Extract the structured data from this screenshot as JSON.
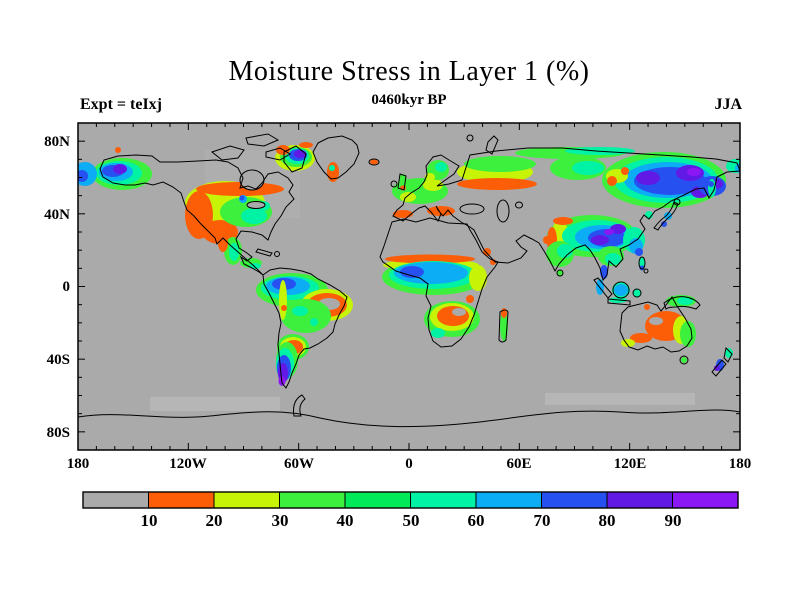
{
  "figure": {
    "title": "Moisture Stress in Layer 1 (%)",
    "subtitle": "0460kyr BP",
    "experiment_label": "Expt = teIxj",
    "season_label": "JJA"
  },
  "axes": {
    "lat_ticks": [
      "80N",
      "40N",
      "0",
      "40S",
      "80S"
    ],
    "lon_ticks": [
      "180",
      "120W",
      "60W",
      "0",
      "60E",
      "120E",
      "180"
    ]
  },
  "colorbar": {
    "labels": [
      "10",
      "20",
      "30",
      "40",
      "50",
      "60",
      "70",
      "80",
      "90"
    ],
    "colors": [
      "#aaaaaa",
      "#fc5e08",
      "#c6f306",
      "#3ef03e",
      "#00e958",
      "#00f2a4",
      "#0cadf5",
      "#2750f0",
      "#611ae6",
      "#8c17f5"
    ]
  },
  "chart_data": {
    "type": "heatmap",
    "title": "Moisture Stress in Layer 1 (%)",
    "subtitle": "0460kyr BP",
    "experiment": "teIxj",
    "season": "JJA",
    "units": "%",
    "projection": "equirectangular world map, filled contours over land",
    "lon_range": [
      -180,
      180
    ],
    "lat_range": [
      -90,
      90
    ],
    "lon_tick_labels": [
      "180",
      "120W",
      "60W",
      "0",
      "60E",
      "120E",
      "180"
    ],
    "lat_tick_labels": [
      "80N",
      "40N",
      "0",
      "40S",
      "80S"
    ],
    "contour_levels": [
      10,
      20,
      30,
      40,
      50,
      60,
      70,
      80,
      90
    ],
    "level_colors": [
      "#aaaaaa",
      "#fc5e08",
      "#c6f306",
      "#3ef03e",
      "#00e958",
      "#00f2a4",
      "#0cadf5",
      "#2750f0",
      "#611ae6",
      "#8c17f5"
    ],
    "legend_position": "bottom horizontal bar",
    "background_color": "#aaaaaa",
    "regions": [
      {
        "region": "Alaska interior",
        "approx_value_pct": "60-90"
      },
      {
        "region": "Canadian Arctic / Hudson Bay area",
        "approx_value_pct": "<10"
      },
      {
        "region": "Western US Great Basin",
        "approx_value_pct": "10-20"
      },
      {
        "region": "Central and Eastern US",
        "approx_value_pct": "30-60"
      },
      {
        "region": "Baffin Island / W Greenland",
        "approx_value_pct": "20-90 bullseye"
      },
      {
        "region": "N South America / Amazon",
        "approx_value_pct": "50-70"
      },
      {
        "region": "E Brazil",
        "approx_value_pct": "10-20 with <10 core"
      },
      {
        "region": "Patagonia",
        "approx_value_pct": "70-90+"
      },
      {
        "region": "Sahara and Arabia",
        "approx_value_pct": "<10"
      },
      {
        "region": "Sahel / tropical Africa",
        "approx_value_pct": "50-70"
      },
      {
        "region": "Southern Africa",
        "approx_value_pct": "10-20"
      },
      {
        "region": "Europe",
        "approx_value_pct": "20-40, 10-20 along south"
      },
      {
        "region": "SW Russia / Kazakh steppe rim",
        "approx_value_pct": "10-20"
      },
      {
        "region": "East Siberia",
        "approx_value_pct": "60-90"
      },
      {
        "region": "Tibet / W China",
        "approx_value_pct": "40-80, 80-90 core"
      },
      {
        "region": "Central Asia deserts",
        "approx_value_pct": "<10"
      },
      {
        "region": "India",
        "approx_value_pct": "30-50"
      },
      {
        "region": "SE Asia / Indonesia",
        "approx_value_pct": "50-70"
      },
      {
        "region": "Eastern Australia",
        "approx_value_pct": "10-20, 30-40 coast"
      },
      {
        "region": "Western / Central Australia",
        "approx_value_pct": "<10"
      },
      {
        "region": "New Zealand",
        "approx_value_pct": "50-80"
      },
      {
        "region": "Antarctica",
        "approx_value_pct": "<10"
      }
    ]
  }
}
